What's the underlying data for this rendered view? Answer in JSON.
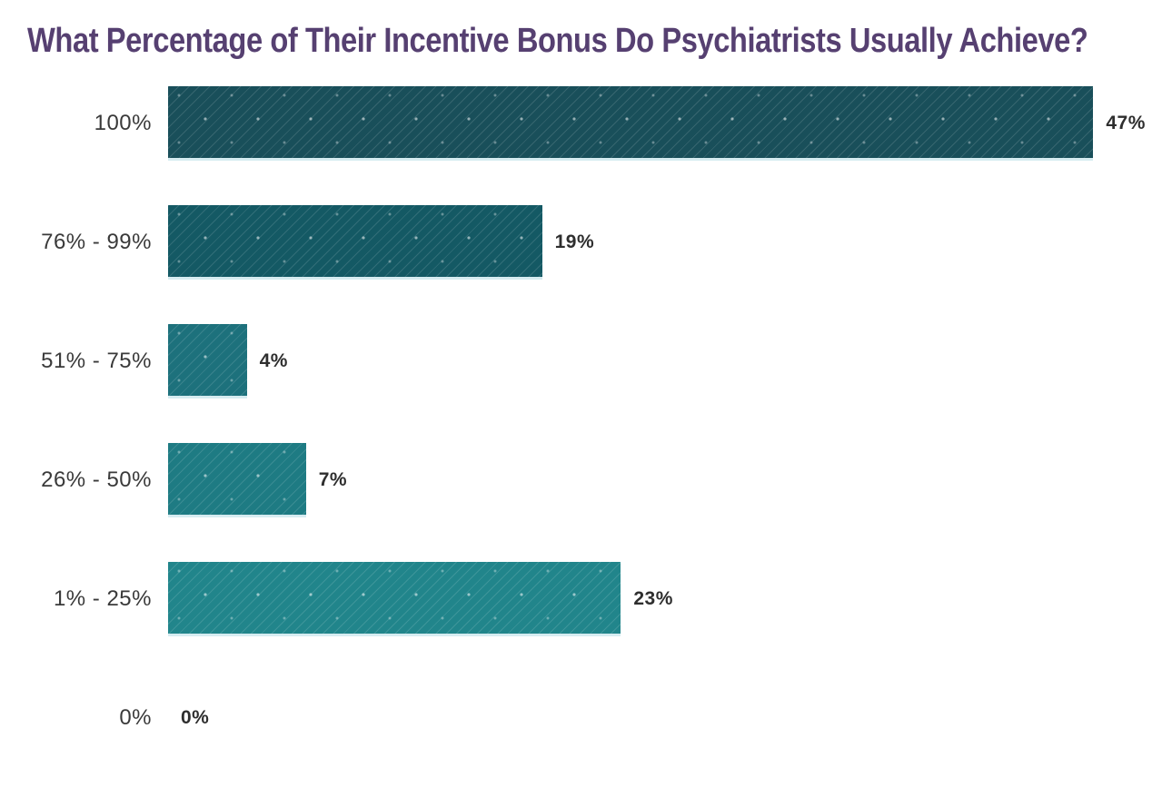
{
  "title": "What Percentage of Their Incentive Bonus Do Psychiatrists Usually Achieve?",
  "title_color": "#564071",
  "chart_data": {
    "type": "bar",
    "orientation": "horizontal",
    "title": "What Percentage of Their Incentive Bonus Do Psychiatrists Usually Achieve?",
    "categories": [
      "100%",
      "76% - 99%",
      "51% - 75%",
      "26% - 50%",
      "1% - 25%",
      "0%"
    ],
    "values": [
      47,
      19,
      4,
      7,
      23,
      0
    ],
    "value_labels": [
      "47%",
      "19%",
      "4%",
      "7%",
      "23%",
      "0%"
    ],
    "xlabel": "",
    "ylabel": "",
    "xlim": [
      0,
      51
    ],
    "grid": false,
    "legend": false,
    "bar_colors": [
      "#194f5a",
      "#145964",
      "#1d717c",
      "#1e7b83",
      "#21858b",
      "#21858b"
    ],
    "bar_underline_color": "#d6ecf1",
    "category_label_color": "#3a3a3a",
    "value_label_color": "#2e2e2e"
  }
}
